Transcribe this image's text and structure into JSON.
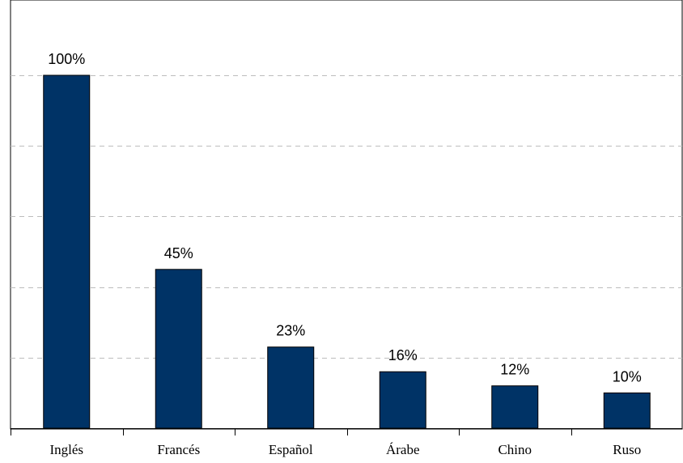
{
  "chart_data": {
    "type": "bar",
    "categories": [
      "Inglés",
      "Francés",
      "Español",
      "Árabe",
      "Chino",
      "Ruso"
    ],
    "values": [
      100,
      45,
      23,
      16,
      12,
      10
    ],
    "data_labels": [
      "100%",
      "45%",
      "23%",
      "16%",
      "12%",
      "10%"
    ],
    "ylim": [
      0,
      100
    ],
    "grid": true,
    "legend": false,
    "bar_color": "#003366",
    "grid_color": "#bdbdbd"
  }
}
